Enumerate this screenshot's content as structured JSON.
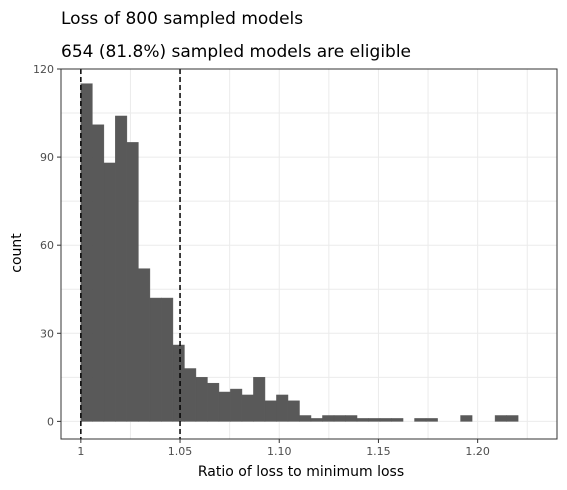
{
  "chart_data": {
    "type": "bar",
    "title": "Loss of 800 sampled models",
    "subtitle": "654 (81.8%) sampled models are eligible",
    "xlabel": "Ratio of loss to minimum loss",
    "ylabel": "count",
    "xlim": [
      0.99,
      1.24
    ],
    "ylim": [
      -6,
      120
    ],
    "x_ticks": [
      1,
      1.05,
      1.1,
      1.15,
      1.2
    ],
    "x_tick_labels": [
      "1",
      "1.05",
      "1.10",
      "1.15",
      "1.20"
    ],
    "y_ticks": [
      0,
      30,
      60,
      90,
      120
    ],
    "y_tick_labels": [
      "0",
      "30",
      "60",
      "90",
      "120"
    ],
    "bin_width": 0.0058,
    "bins": [
      {
        "x0": 1.0,
        "count": 115
      },
      {
        "x0": 1.0058,
        "count": 101
      },
      {
        "x0": 1.0116,
        "count": 88
      },
      {
        "x0": 1.0174,
        "count": 104
      },
      {
        "x0": 1.0232,
        "count": 95
      },
      {
        "x0": 1.029,
        "count": 52
      },
      {
        "x0": 1.0348,
        "count": 42
      },
      {
        "x0": 1.0406,
        "count": 42
      },
      {
        "x0": 1.0464,
        "count": 26
      },
      {
        "x0": 1.0522,
        "count": 18
      },
      {
        "x0": 1.058,
        "count": 15
      },
      {
        "x0": 1.0638,
        "count": 13
      },
      {
        "x0": 1.0696,
        "count": 10
      },
      {
        "x0": 1.0754,
        "count": 11
      },
      {
        "x0": 1.0812,
        "count": 9
      },
      {
        "x0": 1.087,
        "count": 15
      },
      {
        "x0": 1.0928,
        "count": 7
      },
      {
        "x0": 1.0986,
        "count": 9
      },
      {
        "x0": 1.1044,
        "count": 7
      },
      {
        "x0": 1.1102,
        "count": 2
      },
      {
        "x0": 1.116,
        "count": 1
      },
      {
        "x0": 1.1218,
        "count": 2
      },
      {
        "x0": 1.1276,
        "count": 2
      },
      {
        "x0": 1.1334,
        "count": 2
      },
      {
        "x0": 1.1392,
        "count": 1
      },
      {
        "x0": 1.145,
        "count": 1
      },
      {
        "x0": 1.1508,
        "count": 1
      },
      {
        "x0": 1.1566,
        "count": 1
      },
      {
        "x0": 1.1682,
        "count": 1
      },
      {
        "x0": 1.174,
        "count": 1
      },
      {
        "x0": 1.1914,
        "count": 2
      },
      {
        "x0": 1.2088,
        "count": 2
      },
      {
        "x0": 1.2146,
        "count": 2
      }
    ],
    "reference_lines": [
      1.0,
      1.05
    ],
    "grid": true,
    "colors": {
      "bar": "#595959",
      "grid": "#ebebeb",
      "panel_border": "#333333",
      "reference_line": "#000000"
    }
  }
}
